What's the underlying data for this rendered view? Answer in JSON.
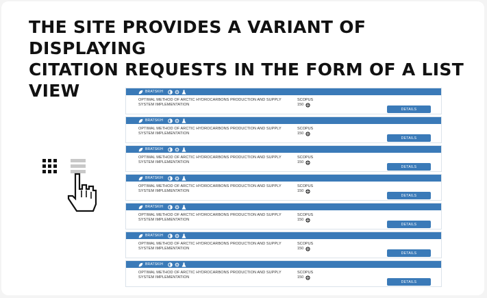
{
  "headline": "THE SITE PROVIDES A VARIANT OF DISPLAYING\nCITATION REQUESTS IN THE FORM OF A LIST VIEW",
  "colors": {
    "accent": "#3a7ab8",
    "header_text": "#ffffff"
  },
  "view_toggle": {
    "grid_icon": "grid-view-icon",
    "list_icon": "list-view-icon",
    "cursor_icon": "hand-pointer-icon"
  },
  "items": [
    {
      "author": "BRATSKIH",
      "title": "OPTIMAL METHOD OF ARCTIC HYDROCARBONS PRODUCTION AND SUPPLY SYSTEM IMPLEMENTATION",
      "database": "SCOPUS",
      "count": "150",
      "button": "DETAILS"
    },
    {
      "author": "BRATSKIH",
      "title": "OPTIMAL METHOD OF ARCTIC HYDROCARBONS PRODUCTION AND SUPPLY SYSTEM IMPLEMENTATION",
      "database": "SCOPUS",
      "count": "150",
      "button": "DETAILS"
    },
    {
      "author": "BRATSKIH",
      "title": "OPTIMAL METHOD OF ARCTIC HYDROCARBONS PRODUCTION AND SUPPLY SYSTEM IMPLEMENTATION",
      "database": "SCOPUS",
      "count": "150",
      "button": "DETAILS"
    },
    {
      "author": "BRATSKIH",
      "title": "OPTIMAL METHOD OF ARCTIC HYDROCARBONS PRODUCTION AND SUPPLY SYSTEM IMPLEMENTATION",
      "database": "SCOPUS",
      "count": "150",
      "button": "DETAILS"
    },
    {
      "author": "BRATSKIH",
      "title": "OPTIMAL METHOD OF ARCTIC HYDROCARBONS PRODUCTION AND SUPPLY SYSTEM IMPLEMENTATION",
      "database": "SCOPUS",
      "count": "150",
      "button": "DETAILS"
    },
    {
      "author": "BRATSKIH",
      "title": "OPTIMAL METHOD OF ARCTIC HYDROCARBONS PRODUCTION AND SUPPLY SYSTEM IMPLEMENTATION",
      "database": "SCOPUS",
      "count": "150",
      "button": "DETAILS"
    },
    {
      "author": "BRATSKIH",
      "title": "OPTIMAL METHOD OF ARCTIC HYDROCARBONS PRODUCTION AND SUPPLY SYSTEM IMPLEMENTATION",
      "database": "SCOPUS",
      "count": "150",
      "button": "DETAILS"
    }
  ]
}
